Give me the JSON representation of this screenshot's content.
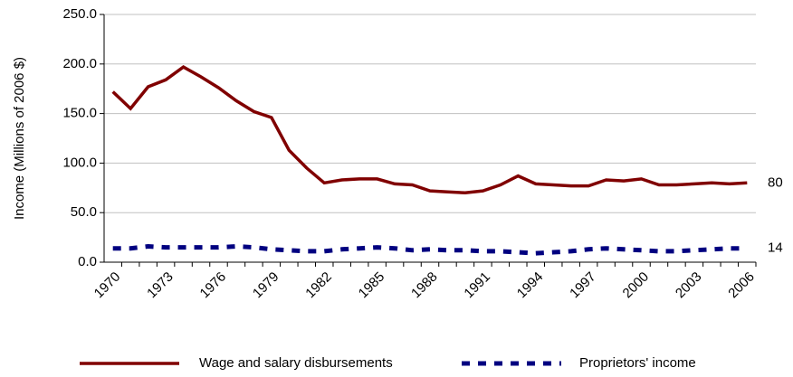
{
  "chart_data": {
    "type": "line",
    "y_label": "Income (Millions of 2006 $)",
    "x": [
      1970,
      1971,
      1972,
      1973,
      1974,
      1975,
      1976,
      1977,
      1978,
      1979,
      1980,
      1981,
      1982,
      1983,
      1984,
      1985,
      1986,
      1987,
      1988,
      1989,
      1990,
      1991,
      1992,
      1993,
      1994,
      1995,
      1996,
      1997,
      1998,
      1999,
      2000,
      2001,
      2002,
      2003,
      2004,
      2005,
      2006
    ],
    "series": [
      {
        "name": "Wage and salary disbursements",
        "color": "#800000",
        "dash": "solid",
        "values": [
          172,
          155,
          177,
          184,
          197,
          187,
          176,
          163,
          152,
          146,
          113,
          95,
          80,
          83,
          84,
          84,
          79,
          78,
          72,
          71,
          70,
          72,
          78,
          87,
          79,
          78,
          77,
          77,
          83,
          82,
          84,
          78,
          78,
          79,
          80,
          79,
          80
        ]
      },
      {
        "name": "Proprietors' income",
        "color": "#000080",
        "dash": "dashed",
        "values": [
          14,
          14,
          16,
          15,
          15,
          15,
          15,
          16,
          15,
          13,
          12,
          11,
          11,
          13,
          14,
          15,
          14,
          12,
          13,
          12,
          12,
          11,
          11,
          10,
          9,
          10,
          11,
          13,
          14,
          13,
          12,
          11,
          11,
          12,
          13,
          14,
          14
        ]
      }
    ],
    "annotations": [
      "80",
      "14"
    ],
    "xlim": [
      1969.5,
      2006.5
    ],
    "xticks": [
      1970,
      1973,
      1976,
      1979,
      1982,
      1985,
      1988,
      1991,
      1994,
      1997,
      2000,
      2003,
      2006
    ],
    "ylim": [
      0,
      250
    ],
    "yticks": [
      {
        "value": 0,
        "label": "0.0"
      },
      {
        "value": 50,
        "label": "50.0"
      },
      {
        "value": 100,
        "label": "100.0"
      },
      {
        "value": 150,
        "label": "150.0"
      },
      {
        "value": 200,
        "label": "200.0"
      },
      {
        "value": 250,
        "label": "250.0"
      }
    ],
    "grid": true,
    "legend": "bottom"
  }
}
